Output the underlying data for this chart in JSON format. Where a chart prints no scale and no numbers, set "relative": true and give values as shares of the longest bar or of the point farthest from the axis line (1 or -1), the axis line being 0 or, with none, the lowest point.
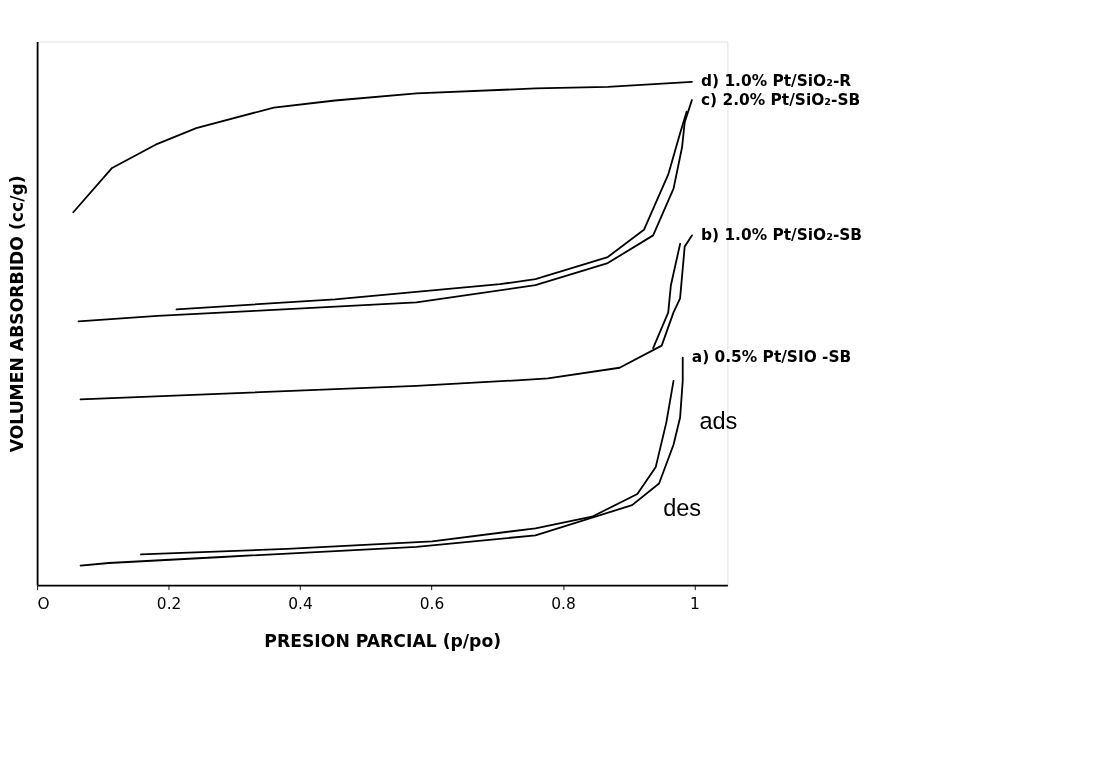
{
  "chart_data": {
    "type": "line",
    "relative": true,
    "xlabel": "PRESION PARCIAL (p/po)",
    "ylabel": "VOLUMEN ABSORBIDO (cc/g)",
    "xlim": [
      0,
      1.05
    ],
    "xticks": [
      {
        "value": 0,
        "label": "O"
      },
      0.2,
      0.4,
      0.6,
      0.8,
      1
    ],
    "grid": false,
    "legend": false,
    "series": [
      {
        "name": "d) 1.0% Pt/SiO₂-R",
        "color": "#000000",
        "x": [
          0.055,
          0.114,
          0.183,
          0.242,
          0.36,
          0.453,
          0.577,
          0.758,
          0.868,
          0.996
        ],
        "values": [
          0.741,
          0.829,
          0.877,
          0.908,
          0.949,
          0.963,
          0.977,
          0.987,
          0.99,
          1.0
        ]
      },
      {
        "name": "c) 2.0% Pt/SiO₂-SB",
        "color": "#000000",
        "x": [
          0.063,
          0.183,
          0.331,
          0.577,
          0.758,
          0.868,
          0.937,
          0.968,
          0.981,
          0.985,
          0.996
        ],
        "values": [
          0.524,
          0.535,
          0.545,
          0.562,
          0.596,
          0.64,
          0.695,
          0.788,
          0.87,
          0.92,
          0.964
        ]
      },
      {
        "color": "#000000",
        "x": [
          0.212,
          0.453,
          0.704,
          0.758,
          0.868,
          0.923,
          0.96,
          0.978,
          0.988
        ],
        "values": [
          0.548,
          0.568,
          0.598,
          0.608,
          0.652,
          0.706,
          0.816,
          0.898,
          0.941
        ]
      },
      {
        "name": "b) 1.0% Pt/SiO₂-SB",
        "color": "#000000",
        "x": [
          0.066,
          0.577,
          0.73,
          0.777,
          0.886,
          0.95,
          0.968,
          0.978,
          0.985,
          0.996
        ],
        "values": [
          0.369,
          0.396,
          0.407,
          0.411,
          0.432,
          0.476,
          0.542,
          0.57,
          0.673,
          0.695
        ]
      },
      {
        "color": "#000000",
        "x": [
          0.937,
          0.96,
          0.964,
          0.978
        ],
        "values": [
          0.471,
          0.542,
          0.596,
          0.678
        ]
      },
      {
        "name": "a) 0.5% Pt/SIO -SB",
        "color": "#000000",
        "x": [
          0.066,
          0.109,
          0.281,
          0.577,
          0.758,
          0.905,
          0.946,
          0.968,
          0.978,
          0.982,
          0.982
        ],
        "values": [
          0.039,
          0.044,
          0.056,
          0.076,
          0.099,
          0.159,
          0.202,
          0.279,
          0.333,
          0.406,
          0.452
        ]
      },
      {
        "color": "#000000",
        "x": [
          0.158,
          0.38,
          0.601,
          0.758,
          0.844,
          0.913,
          0.941,
          0.957,
          0.968
        ],
        "values": [
          0.061,
          0.072,
          0.087,
          0.113,
          0.136,
          0.181,
          0.235,
          0.323,
          0.406
        ]
      }
    ],
    "annotations": [
      "ads",
      "des"
    ]
  }
}
